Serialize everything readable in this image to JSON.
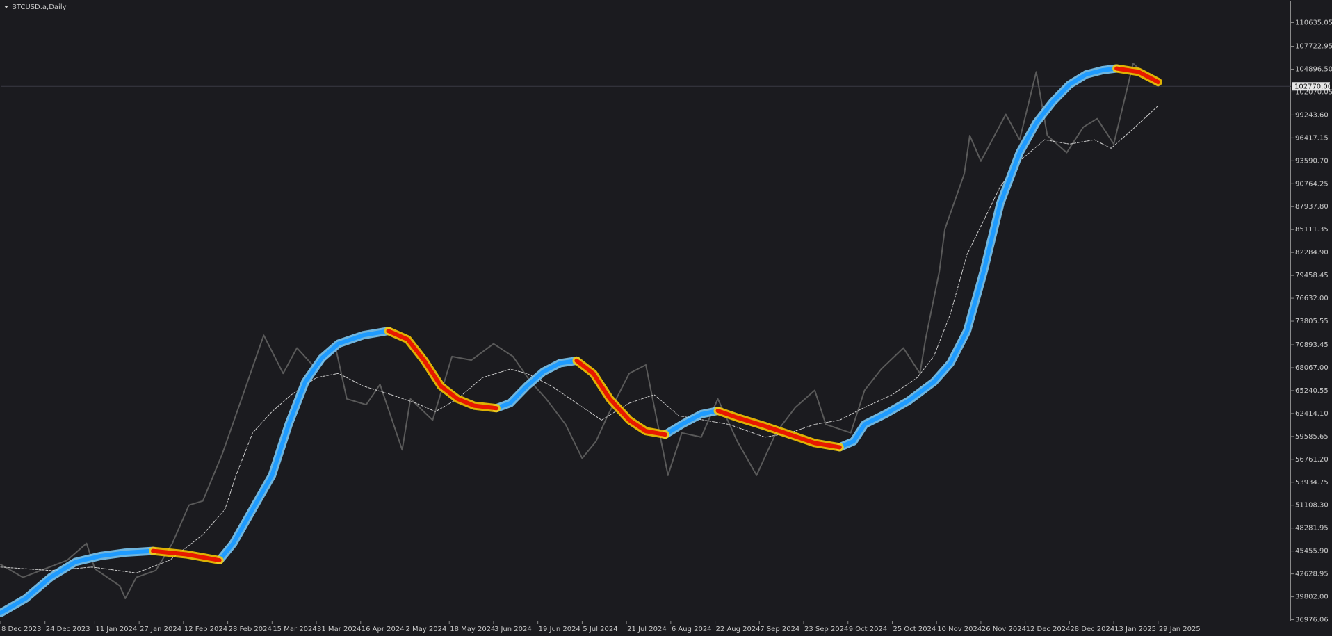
{
  "chart_data": {
    "type": "line",
    "title": "BTCUSD.a,Daily",
    "xlim": [
      "2023-12-08",
      "2025-03-18"
    ],
    "ylim": [
      36766,
      113254
    ],
    "xticks": [
      {
        "value": "2023-12-08",
        "label": "8 Dec 2023"
      },
      {
        "value": "2023-12-24",
        "label": "24 Dec 2023"
      },
      {
        "value": "2024-01-11",
        "label": "11 Jan 2024"
      },
      {
        "value": "2024-01-27",
        "label": "27 Jan 2024"
      },
      {
        "value": "2024-02-12",
        "label": "12 Feb 2024"
      },
      {
        "value": "2024-02-28",
        "label": "28 Feb 2024"
      },
      {
        "value": "2024-03-15",
        "label": "15 Mar 2024"
      },
      {
        "value": "2024-03-31",
        "label": "31 Mar 2024"
      },
      {
        "value": "2024-04-16",
        "label": "16 Apr 2024"
      },
      {
        "value": "2024-05-02",
        "label": "2 May 2024"
      },
      {
        "value": "2024-05-18",
        "label": "18 May 2024"
      },
      {
        "value": "2024-06-03",
        "label": "3 Jun 2024"
      },
      {
        "value": "2024-06-19",
        "label": "19 Jun 2024"
      },
      {
        "value": "2024-07-05",
        "label": "5 Jul 2024"
      },
      {
        "value": "2024-07-21",
        "label": "21 Jul 2024"
      },
      {
        "value": "2024-08-06",
        "label": "6 Aug 2024"
      },
      {
        "value": "2024-08-22",
        "label": "22 Aug 2024"
      },
      {
        "value": "2024-09-07",
        "label": "7 Sep 2024"
      },
      {
        "value": "2024-09-23",
        "label": "23 Sep 2024"
      },
      {
        "value": "2024-10-09",
        "label": "9 Oct 2024"
      },
      {
        "value": "2024-10-25",
        "label": "25 Oct 2024"
      },
      {
        "value": "2024-11-10",
        "label": "10 Nov 2024"
      },
      {
        "value": "2024-11-26",
        "label": "26 Nov 2024"
      },
      {
        "value": "2024-12-12",
        "label": "12 Dec 2024"
      },
      {
        "value": "2024-12-28",
        "label": "28 Dec 2024"
      },
      {
        "value": "2025-01-13",
        "label": "13 Jan 2025"
      },
      {
        "value": "2025-01-29",
        "label": "29 Jan 2025"
      }
    ],
    "yticks": [
      110635.05,
      107722.95,
      {
        "value": 104896.5,
        "label": "104896.50"
      },
      102070.05,
      {
        "value": 99243.6,
        "label": "99243.60"
      },
      96417.15,
      {
        "value": 93590.7,
        "label": "93590.70"
      },
      90764.25,
      {
        "value": 87937.8,
        "label": "87937.80"
      },
      85111.35,
      {
        "value": 82284.9,
        "label": "82284.90"
      },
      79458.45,
      {
        "value": 76632,
        "label": "76632.00"
      },
      73805.55,
      70893.45,
      {
        "value": 68067,
        "label": "68067.00"
      },
      65240.55,
      {
        "value": 62414.1,
        "label": "62414.10"
      },
      59585.65,
      {
        "value": 56761.2,
        "label": "56761.20"
      },
      53934.75,
      {
        "value": 51108.3,
        "label": "51108.30"
      },
      48281.95,
      {
        "value": 45455.9,
        "label": "45455.90"
      },
      42628.95,
      {
        "value": 39802,
        "label": "39802.00"
      },
      36976.06
    ],
    "last_price": {
      "value": 102770,
      "label": "102770.00"
    },
    "series": [
      {
        "color": "#5a5a5a",
        "width": 2,
        "x": [
          "2023-12-08",
          "2023-12-16",
          "2023-12-24",
          "2024-01-01",
          "2024-01-08",
          "2024-01-11",
          "2024-01-20",
          "2024-01-22",
          "2024-01-26",
          "2024-02-02",
          "2024-02-08",
          "2024-02-14",
          "2024-02-19",
          "2024-02-26",
          "2024-03-04",
          "2024-03-12",
          "2024-03-19",
          "2024-03-24",
          "2024-03-31",
          "2024-04-07",
          "2024-04-11",
          "2024-04-18",
          "2024-04-23",
          "2024-05-01",
          "2024-05-04",
          "2024-05-12",
          "2024-05-19",
          "2024-05-26",
          "2024-06-03",
          "2024-06-10",
          "2024-06-16",
          "2024-06-22",
          "2024-06-29",
          "2024-07-05",
          "2024-07-10",
          "2024-07-14",
          "2024-07-22",
          "2024-07-28",
          "2024-08-05",
          "2024-08-10",
          "2024-08-17",
          "2024-08-23",
          "2024-08-30",
          "2024-09-06",
          "2024-09-13",
          "2024-09-20",
          "2024-09-27",
          "2024-10-01",
          "2024-10-10",
          "2024-10-15",
          "2024-10-21",
          "2024-10-29",
          "2024-11-04",
          "2024-11-06",
          "2024-11-11",
          "2024-11-13",
          "2024-11-20",
          "2024-11-22",
          "2024-11-26",
          "2024-12-05",
          "2024-12-10",
          "2024-12-16",
          "2024-12-20",
          "2024-12-27",
          "2025-01-02",
          "2025-01-07",
          "2025-01-13",
          "2025-01-20",
          "2025-01-25",
          "2025-01-29"
        ],
        "values": [
          43790,
          42210,
          43260,
          44310,
          46400,
          43260,
          41160,
          39600,
          42210,
          43050,
          46400,
          51110,
          51630,
          57400,
          64220,
          72070,
          67360,
          70500,
          67880,
          70500,
          64220,
          63500,
          66000,
          57930,
          64220,
          61600,
          69450,
          69000,
          71020,
          69450,
          66500,
          64220,
          61070,
          56880,
          58980,
          62000,
          67360,
          68410,
          54790,
          60030,
          59500,
          64220,
          59000,
          54790,
          60030,
          63170,
          65280,
          61070,
          60030,
          65280,
          67880,
          70500,
          67360,
          71550,
          79940,
          85170,
          91980,
          96700,
          93550,
          99320,
          96180,
          104560,
          96700,
          94600,
          97750,
          98790,
          95650,
          105600,
          104030,
          102770
        ]
      },
      {
        "color": "#cfcfcf",
        "width": 1,
        "dash": true,
        "x": [
          "2023-12-08",
          "2023-12-26",
          "2024-01-10",
          "2024-01-26",
          "2024-02-07",
          "2024-02-19",
          "2024-02-27",
          "2024-03-02",
          "2024-03-08",
          "2024-03-15",
          "2024-03-22",
          "2024-03-31",
          "2024-04-08",
          "2024-04-17",
          "2024-04-27",
          "2024-05-06",
          "2024-05-13",
          "2024-05-21",
          "2024-05-30",
          "2024-06-09",
          "2024-06-15",
          "2024-06-24",
          "2024-07-03",
          "2024-07-12",
          "2024-07-22",
          "2024-07-31",
          "2024-08-09",
          "2024-08-18",
          "2024-08-27",
          "2024-09-09",
          "2024-09-18",
          "2024-09-27",
          "2024-10-06",
          "2024-10-15",
          "2024-10-25",
          "2024-11-03",
          "2024-11-09",
          "2024-11-15",
          "2024-11-21",
          "2024-11-27",
          "2024-12-03",
          "2024-12-10",
          "2024-12-19",
          "2024-12-28",
          "2025-01-06",
          "2025-01-12",
          "2025-01-19",
          "2025-01-29"
        ],
        "values": [
          43470,
          43050,
          43470,
          42740,
          44310,
          47450,
          50600,
          54790,
          60030,
          62650,
          64740,
          66840,
          67360,
          65790,
          64740,
          63690,
          62650,
          64220,
          66840,
          67890,
          67360,
          65790,
          63690,
          61600,
          63690,
          64740,
          62120,
          61600,
          61070,
          59500,
          60030,
          61070,
          61600,
          63170,
          64740,
          66840,
          69460,
          74700,
          82030,
          86220,
          90410,
          93560,
          96180,
          95650,
          96180,
          95130,
          97220,
          100370
        ]
      },
      {
        "color": "#1e9bff",
        "glow": "#7fd0ff",
        "width": 9,
        "x": [
          "2023-12-08",
          "2023-12-17",
          "2023-12-26",
          "2024-01-04",
          "2024-01-13",
          "2024-01-22",
          "2024-02-01",
          "2024-02-13",
          "2024-02-25",
          "2024-03-01",
          "2024-03-08",
          "2024-03-15",
          "2024-03-21",
          "2024-03-27",
          "2024-04-02",
          "2024-04-08",
          "2024-04-17",
          "2024-04-26",
          "2024-05-03",
          "2024-05-09",
          "2024-05-15",
          "2024-05-21",
          "2024-05-27",
          "2024-06-04",
          "2024-06-09",
          "2024-06-15",
          "2024-06-21",
          "2024-06-27",
          "2024-07-03",
          "2024-07-09",
          "2024-07-15",
          "2024-07-22",
          "2024-07-28",
          "2024-08-04",
          "2024-08-10",
          "2024-08-17",
          "2024-08-23",
          "2024-08-30",
          "2024-09-09",
          "2024-09-18",
          "2024-09-27",
          "2024-10-06",
          "2024-10-11",
          "2024-10-15",
          "2024-10-23",
          "2024-10-31",
          "2024-11-09",
          "2024-11-15",
          "2024-11-21",
          "2024-11-27",
          "2024-12-03",
          "2024-12-10",
          "2024-12-16",
          "2024-12-22",
          "2024-12-28",
          "2025-01-03",
          "2025-01-09",
          "2025-01-14",
          "2025-01-22",
          "2025-01-29"
        ],
        "values": [
          37810,
          39590,
          42210,
          44100,
          44830,
          45250,
          45460,
          null,
          44310,
          46400,
          50600,
          54790,
          61070,
          66310,
          69250,
          71030,
          72080,
          72600,
          null,
          null,
          null,
          null,
          null,
          63070,
          63690,
          65790,
          67570,
          68620,
          68930,
          null,
          null,
          null,
          null,
          59820,
          61070,
          62330,
          62750,
          null,
          null,
          null,
          null,
          58250,
          58980,
          61070,
          62440,
          64010,
          66310,
          68620,
          72600,
          79930,
          88320,
          94600,
          98270,
          100890,
          102990,
          104240,
          104770,
          104980,
          null,
          null
        ]
      },
      {
        "color": "#e81800",
        "glow": "#ffcc00",
        "width": 9,
        "x": [
          "2023-12-08",
          "2023-12-17",
          "2023-12-26",
          "2024-01-04",
          "2024-01-13",
          "2024-01-22",
          "2024-02-01",
          "2024-02-13",
          "2024-02-25",
          "2024-03-01",
          "2024-03-08",
          "2024-03-15",
          "2024-03-21",
          "2024-03-27",
          "2024-04-02",
          "2024-04-08",
          "2024-04-17",
          "2024-04-26",
          "2024-05-03",
          "2024-05-09",
          "2024-05-15",
          "2024-05-21",
          "2024-05-27",
          "2024-06-04",
          "2024-06-09",
          "2024-06-15",
          "2024-06-21",
          "2024-06-27",
          "2024-07-03",
          "2024-07-09",
          "2024-07-15",
          "2024-07-22",
          "2024-07-28",
          "2024-08-04",
          "2024-08-10",
          "2024-08-17",
          "2024-08-23",
          "2024-08-30",
          "2024-09-09",
          "2024-09-18",
          "2024-09-27",
          "2024-10-06",
          "2024-10-11",
          "2024-10-15",
          "2024-10-23",
          "2024-10-31",
          "2024-11-09",
          "2024-11-15",
          "2024-11-21",
          "2024-11-27",
          "2024-12-03",
          "2024-12-10",
          "2024-12-16",
          "2024-12-22",
          "2024-12-28",
          "2025-01-03",
          "2025-01-09",
          "2025-01-14",
          "2025-01-22",
          "2025-01-29"
        ],
        "values": [
          null,
          null,
          null,
          null,
          null,
          null,
          45460,
          45040,
          44310,
          null,
          null,
          null,
          null,
          null,
          null,
          null,
          null,
          72600,
          71550,
          68930,
          65790,
          64220,
          63380,
          63070,
          null,
          null,
          null,
          null,
          68930,
          67360,
          64220,
          61600,
          60240,
          59820,
          null,
          null,
          62750,
          61910,
          60860,
          59820,
          58770,
          58250,
          null,
          null,
          null,
          null,
          null,
          null,
          null,
          null,
          null,
          null,
          null,
          null,
          null,
          null,
          null,
          104980,
          104560,
          103300
        ]
      }
    ]
  }
}
